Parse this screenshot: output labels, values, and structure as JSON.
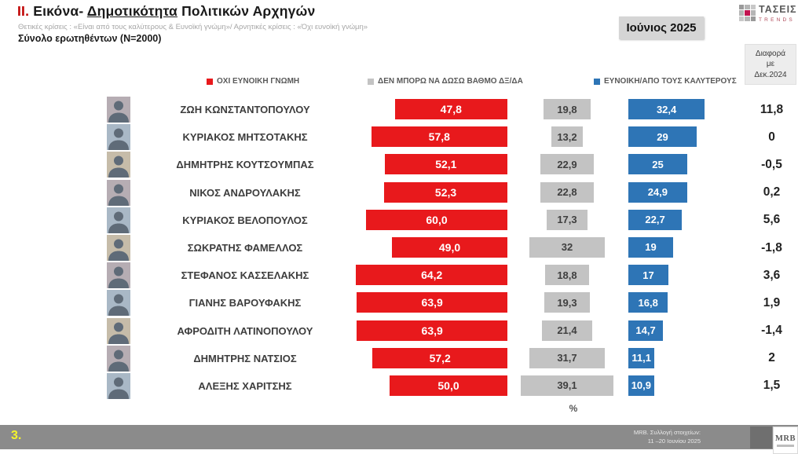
{
  "header": {
    "title": {
      "prefix": "II.",
      "part1": " Εικόνα- ",
      "underlined": "Δημοτικότητα",
      "part2": " Πολιτικών Αρχηγών"
    },
    "subtitle": "Θετικές κρίσεις : «Είναι από τους καλύτερους &  Ευνοϊκή γνώμη»/ Αρνητικές κρίσεις : «Όχι ευνοϊκή γνώμη»",
    "sample": "Σύνολο ερωτηθέντων (N=2000)",
    "period": "Ιούνιος 2025",
    "diff_header": {
      "line1": "Διαφορά",
      "line2": "με",
      "line3": "Δεκ.2024"
    },
    "taseis_logo": {
      "name": "ΤΑΣΕΙΣ",
      "sub": "TRENDS"
    }
  },
  "legend": {
    "items": [
      {
        "label": "ΟΧΙ ΕΥΝΟΙΚΗ ΓΝΩΜΗ",
        "color": "#e8191c"
      },
      {
        "label": "ΔΕΝ ΜΠΟΡΩ ΝΑ ΔΩΣΩ ΒΑΘΜΟ ΔΞ/ΔΑ",
        "color": "#c3c3c3"
      },
      {
        "label": "ΕΥΝΟΙΚΗ/ΑΠΟ ΤΟΥΣ ΚΑΛΥΤΕΡΟΥΣ",
        "color": "#2e75b6"
      }
    ]
  },
  "chart_data": {
    "type": "bar",
    "orientation": "horizontal",
    "unit_label": "%",
    "value_range": [
      0,
      100
    ],
    "legend_position": "top",
    "series_names": [
      "ΟΧΙ ΕΥΝΟΙΚΗ ΓΝΩΜΗ",
      "ΔΕΝ ΜΠΟΡΩ ΝΑ ΔΩΣΩ ΒΑΘΜΟ ΔΞ/ΔΑ",
      "ΕΥΝΟΙΚΗ/ΑΠΟ ΤΟΥΣ ΚΑΛΥΤΕΡΟΥΣ",
      "Διαφορά με Δεκ.2024"
    ],
    "rows": [
      {
        "name": "ΖΩΗ ΚΩΝΣΤΑΝΤΟΠΟΥΛΟΥ",
        "negative": 47.8,
        "negative_label": "47,8",
        "dontknow": 19.8,
        "dontknow_label": "19,8",
        "positive": 32.4,
        "positive_label": "32,4",
        "diff": "11,8"
      },
      {
        "name": "ΚΥΡΙΑΚΟΣ ΜΗΤΣΟΤΑΚΗΣ",
        "negative": 57.8,
        "negative_label": "57,8",
        "dontknow": 13.2,
        "dontknow_label": "13,2",
        "positive": 29,
        "positive_label": "29",
        "diff": "0"
      },
      {
        "name": "ΔΗΜΗΤΡΗΣ ΚΟΥΤΣΟΥΜΠΑΣ",
        "negative": 52.1,
        "negative_label": "52,1",
        "dontknow": 22.9,
        "dontknow_label": "22,9",
        "positive": 25,
        "positive_label": "25",
        "diff": "-0,5"
      },
      {
        "name": "ΝΙΚΟΣ ΑΝΔΡΟΥΛΑΚΗΣ",
        "negative": 52.3,
        "negative_label": "52,3",
        "dontknow": 22.8,
        "dontknow_label": "22,8",
        "positive": 24.9,
        "positive_label": "24,9",
        "diff": "0,2"
      },
      {
        "name": "ΚΥΡΙΑΚΟΣ ΒΕΛΟΠΟΥΛΟΣ",
        "negative": 60.0,
        "negative_label": "60,0",
        "dontknow": 17.3,
        "dontknow_label": "17,3",
        "positive": 22.7,
        "positive_label": "22,7",
        "diff": "5,6"
      },
      {
        "name": "ΣΩΚΡΑΤΗΣ ΦΑΜΕΛΛΟΣ",
        "negative": 49.0,
        "negative_label": "49,0",
        "dontknow": 32,
        "dontknow_label": "32",
        "positive": 19,
        "positive_label": "19",
        "diff": "-1,8"
      },
      {
        "name": "ΣΤΕΦΑΝΟΣ ΚΑΣΣΕΛΑΚΗΣ",
        "negative": 64.2,
        "negative_label": "64,2",
        "dontknow": 18.8,
        "dontknow_label": "18,8",
        "positive": 17,
        "positive_label": "17",
        "diff": "3,6"
      },
      {
        "name": "ΓΙΑΝΗΣ ΒΑΡΟΥΦΑΚΗΣ",
        "negative": 63.9,
        "negative_label": "63,9",
        "dontknow": 19.3,
        "dontknow_label": "19,3",
        "positive": 16.8,
        "positive_label": "16,8",
        "diff": "1,9"
      },
      {
        "name": "ΑΦΡΟΔΙΤΗ ΛΑΤΙΝΟΠΟΥΛΟΥ",
        "negative": 63.9,
        "negative_label": "63,9",
        "dontknow": 21.4,
        "dontknow_label": "21,4",
        "positive": 14.7,
        "positive_label": "14,7",
        "diff": "-1,4"
      },
      {
        "name": "ΔΗΜΗΤΡΗΣ ΝΑΤΣΙΟΣ",
        "negative": 57.2,
        "negative_label": "57,2",
        "dontknow": 31.7,
        "dontknow_label": "31,7",
        "positive": 11.1,
        "positive_label": "11,1",
        "diff": "2"
      },
      {
        "name": "ΑΛΕΞΗΣ ΧΑΡΙΤΣΗΣ",
        "negative": 50.0,
        "negative_label": "50,0",
        "dontknow": 39.1,
        "dontknow_label": "39,1",
        "positive": 10.9,
        "positive_label": "10,9",
        "diff": "1,5"
      }
    ]
  },
  "footer": {
    "page_number": "3.",
    "source_line1": "MRB. Συλλογή στοιχείων:",
    "source_line2": "11 –20 Ιουνίου 2025",
    "mrb_logo": "MRB"
  },
  "colors": {
    "negative": "#e8191c",
    "dontknow": "#c3c3c3",
    "positive": "#2e75b6",
    "title_prefix": "#c00000",
    "footer_bar": "#8b8b8b",
    "page_number": "#f5f52a"
  }
}
